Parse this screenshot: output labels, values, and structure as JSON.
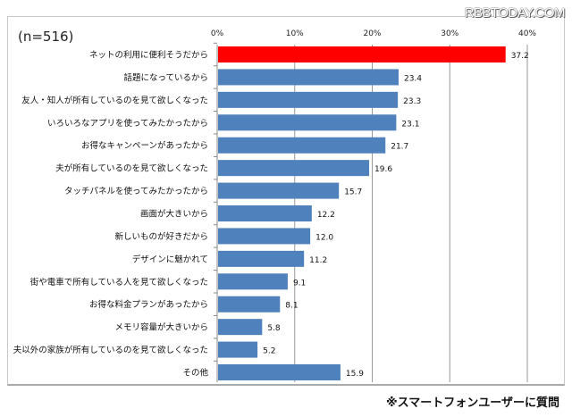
{
  "watermark": "RBBTODAY.COM",
  "sample_note": "(n=516)",
  "footnote": "※スマートフォンユーザーに質問",
  "colors": {
    "highlight": "#ff0000",
    "bar": "#4f81bd"
  },
  "chart_data": {
    "type": "bar",
    "orientation": "horizontal",
    "title": "",
    "xlabel": "",
    "ylabel": "",
    "xlim": [
      0,
      40
    ],
    "ticks": [
      0,
      10,
      20,
      30,
      40
    ],
    "tick_labels": [
      "0%",
      "10%",
      "20%",
      "30%",
      "40%"
    ],
    "grid": true,
    "categories": [
      "ネットの利用に便利そうだから",
      "話題になっているから",
      "友人・知人が所有しているのを見て欲しくなった",
      "いろいろなアプリを使ってみたかったから",
      "お得なキャンペーンがあったから",
      "夫が所有しているのを見て欲しくなった",
      "タッチパネルを使ってみたかったから",
      "画面が大きいから",
      "新しいものが好きだから",
      "デザインに魅かれて",
      "街や電車で所有している人を見て欲しくなった",
      "お得な料金プランがあったから",
      "メモリ容量が大きいから",
      "夫以外の家族が所有しているのを見て欲しくなった",
      "その他"
    ],
    "values": [
      37.2,
      23.4,
      23.3,
      23.1,
      21.7,
      19.6,
      15.7,
      12.2,
      12.0,
      11.2,
      9.1,
      8.1,
      5.8,
      5.2,
      15.9
    ],
    "value_labels": [
      "37.2",
      "23.4",
      "23.3",
      "23.1",
      "21.7",
      "19.6",
      "15.7",
      "12.2",
      "12.0",
      "11.2",
      "9.1",
      "8.1",
      "5.8",
      "5.2",
      "15.9"
    ]
  }
}
